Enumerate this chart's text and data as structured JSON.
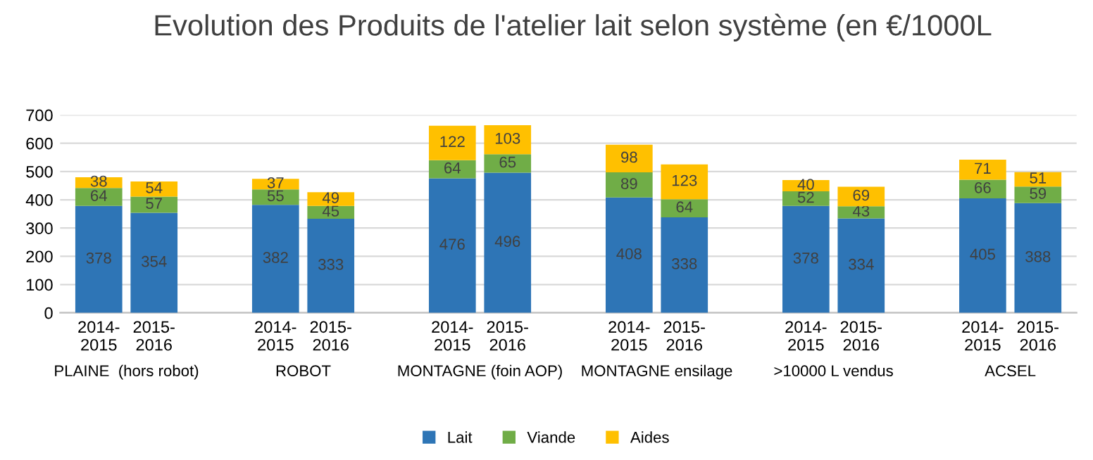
{
  "chart_data": {
    "type": "bar",
    "title": "Evolution des Produits de l'atelier lait selon système (en €/1000L",
    "stacked": true,
    "data_labels": true,
    "grid": "y",
    "legend": "bottom",
    "categories": [
      "2014-2015",
      "2015-2016",
      "2014-2015",
      "2015-2016",
      "2014-2015",
      "2015-2016",
      "2014-2015",
      "2015-2016",
      "2014-2015",
      "2015-2016",
      "2014-2015",
      "2015-2016"
    ],
    "annotations": [
      "PLAINE  (hors robot)",
      "ROBOT",
      "MONTAGNE (foin AOP)",
      "MONTAGNE ensilage",
      ">10000 L vendus",
      "ACSEL"
    ],
    "series": [
      {
        "name": "Lait",
        "color": "#2e75b6",
        "values": [
          378,
          354,
          382,
          333,
          476,
          496,
          408,
          338,
          378,
          334,
          405,
          388
        ]
      },
      {
        "name": "Viande",
        "color": "#70ad47",
        "values": [
          64,
          57,
          55,
          45,
          64,
          65,
          89,
          64,
          52,
          43,
          66,
          59
        ]
      },
      {
        "name": "Aides",
        "color": "#ffc000",
        "values": [
          38,
          54,
          37,
          49,
          122,
          103,
          98,
          123,
          40,
          69,
          71,
          51
        ]
      }
    ],
    "ylim": [
      0,
      700
    ],
    "yticks": [
      0,
      100,
      200,
      300,
      400,
      500,
      600,
      700
    ]
  }
}
